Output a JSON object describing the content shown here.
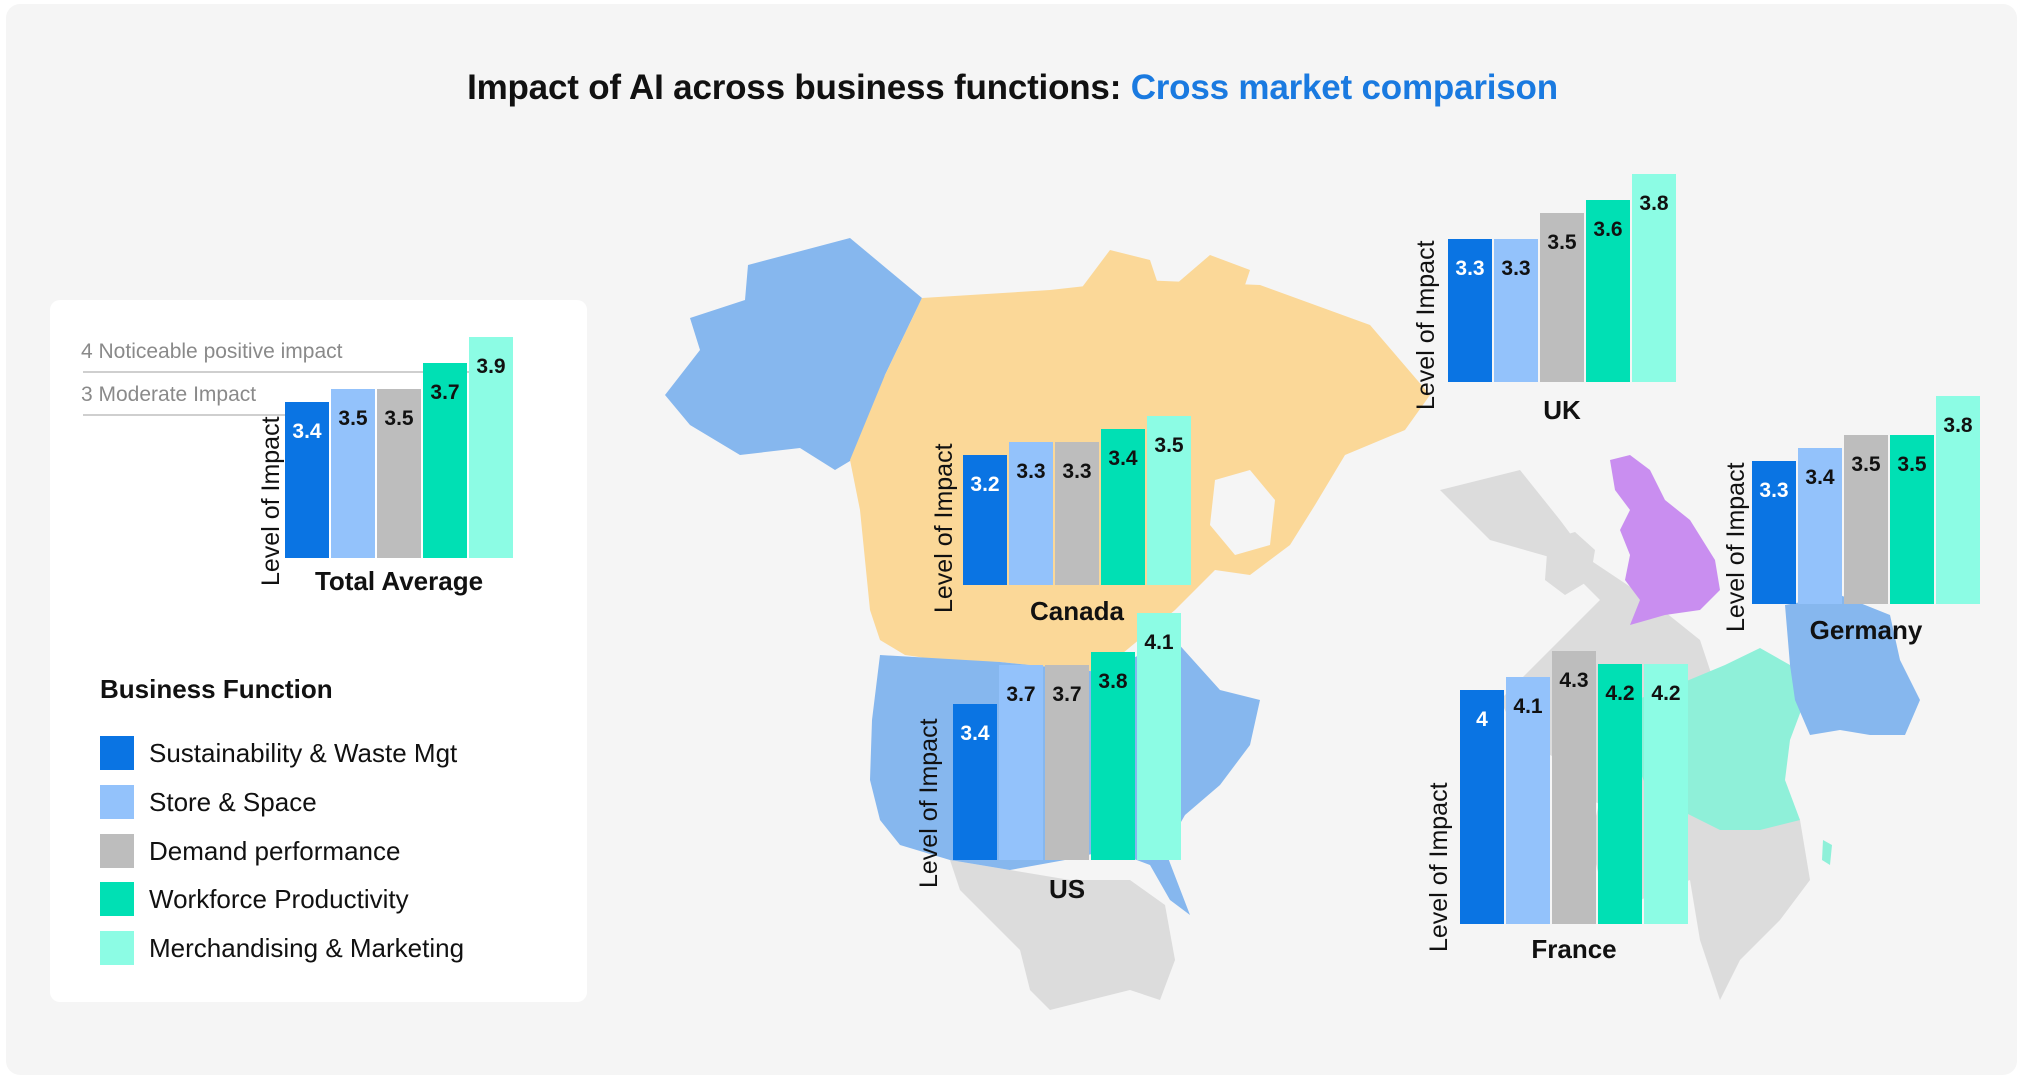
{
  "title": {
    "main": "Impact of AI across business functions: ",
    "accent": "Cross market comparison"
  },
  "colors": {
    "Sustainability & Waste Mgt": "#0a74e3",
    "Store & Space": "#93c2fb",
    "Demand performance": "#bdbdbd",
    "Workforce Productivity": "#00e0b4",
    "Merchandising & Marketing": "#8cfce4",
    "map_us": "#86b7ee",
    "map_canada": "#fbd898",
    "map_uk": "#c98ef0",
    "map_france": "#8ff0d9",
    "map_germany": "#86b7ee",
    "map_other": "#dcdcdc"
  },
  "reference_lines": [
    {
      "value": 4,
      "label": "4  Noticeable positive impact"
    },
    {
      "value": 3,
      "label": "3  Moderate Impact"
    }
  ],
  "legend": {
    "title": "Business Function",
    "items": [
      "Sustainability & Waste Mgt",
      "Store & Space",
      "Demand performance",
      "Workforce Productivity",
      "Merchandising & Marketing"
    ]
  },
  "chart_data": {
    "type": "bar",
    "title": "Impact of AI across business functions: Cross market comparison",
    "ylabel": "Level of Impact",
    "categories": [
      "Sustainability & Waste Mgt",
      "Store & Space",
      "Demand performance",
      "Workforce Productivity",
      "Merchandising & Marketing"
    ],
    "panels": [
      {
        "name": "Total Average",
        "ylabel": "Level of Impact",
        "values": [
          3.4,
          3.5,
          3.5,
          3.7,
          3.9
        ],
        "labels": [
          "3.4",
          "3.5",
          "3.5",
          "3.7",
          "3.9"
        ]
      },
      {
        "name": "Canada",
        "ylabel": "Level of Impact",
        "values": [
          3.2,
          3.3,
          3.3,
          3.4,
          3.5
        ],
        "labels": [
          "3.2",
          "3.3",
          "3.3",
          "3.4",
          "3.5"
        ]
      },
      {
        "name": "US",
        "ylabel": "Level of Impact",
        "values": [
          3.4,
          3.7,
          3.7,
          3.8,
          4.1
        ],
        "labels": [
          "3.4",
          "3.7",
          "3.7",
          "3.8",
          "4.1"
        ]
      },
      {
        "name": "UK",
        "ylabel": "Level of Impact",
        "values": [
          3.3,
          3.3,
          3.5,
          3.6,
          3.8
        ],
        "labels": [
          "3.3",
          "3.3",
          "3.5",
          "3.6",
          "3.8"
        ]
      },
      {
        "name": "Germany",
        "ylabel": "Level of Impact",
        "values": [
          3.3,
          3.4,
          3.5,
          3.5,
          3.8
        ],
        "labels": [
          "3.3",
          "3.4",
          "3.5",
          "3.5",
          "3.8"
        ]
      },
      {
        "name": "France",
        "ylabel": "Level of Impact",
        "values": [
          4,
          4.1,
          4.3,
          4.2,
          4.2
        ],
        "labels": [
          "4",
          "4.1",
          "4.3",
          "4.2",
          "4.2"
        ]
      }
    ]
  }
}
